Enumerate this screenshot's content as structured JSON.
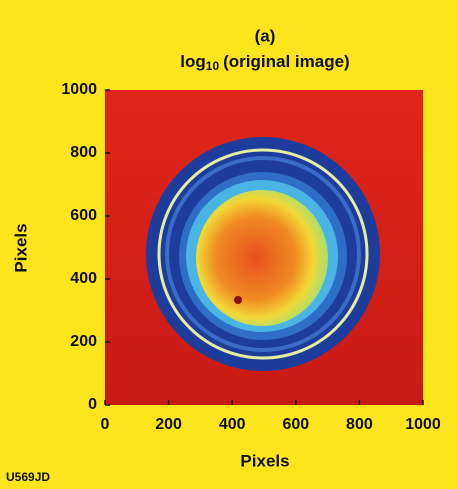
{
  "chart_data": {
    "type": "image",
    "panel_label": "(a)",
    "title": {
      "base": "log",
      "subscript": "10",
      "text": "(original image)"
    },
    "xlabel": "Pixels",
    "ylabel": "Pixels",
    "xlim": [
      0,
      1000
    ],
    "ylim": [
      0,
      1000
    ],
    "xticks": [
      0,
      200,
      400,
      600,
      800,
      1000
    ],
    "yticks": [
      0,
      200,
      400,
      600,
      800,
      1000
    ]
  },
  "footer_label": "U569JD"
}
